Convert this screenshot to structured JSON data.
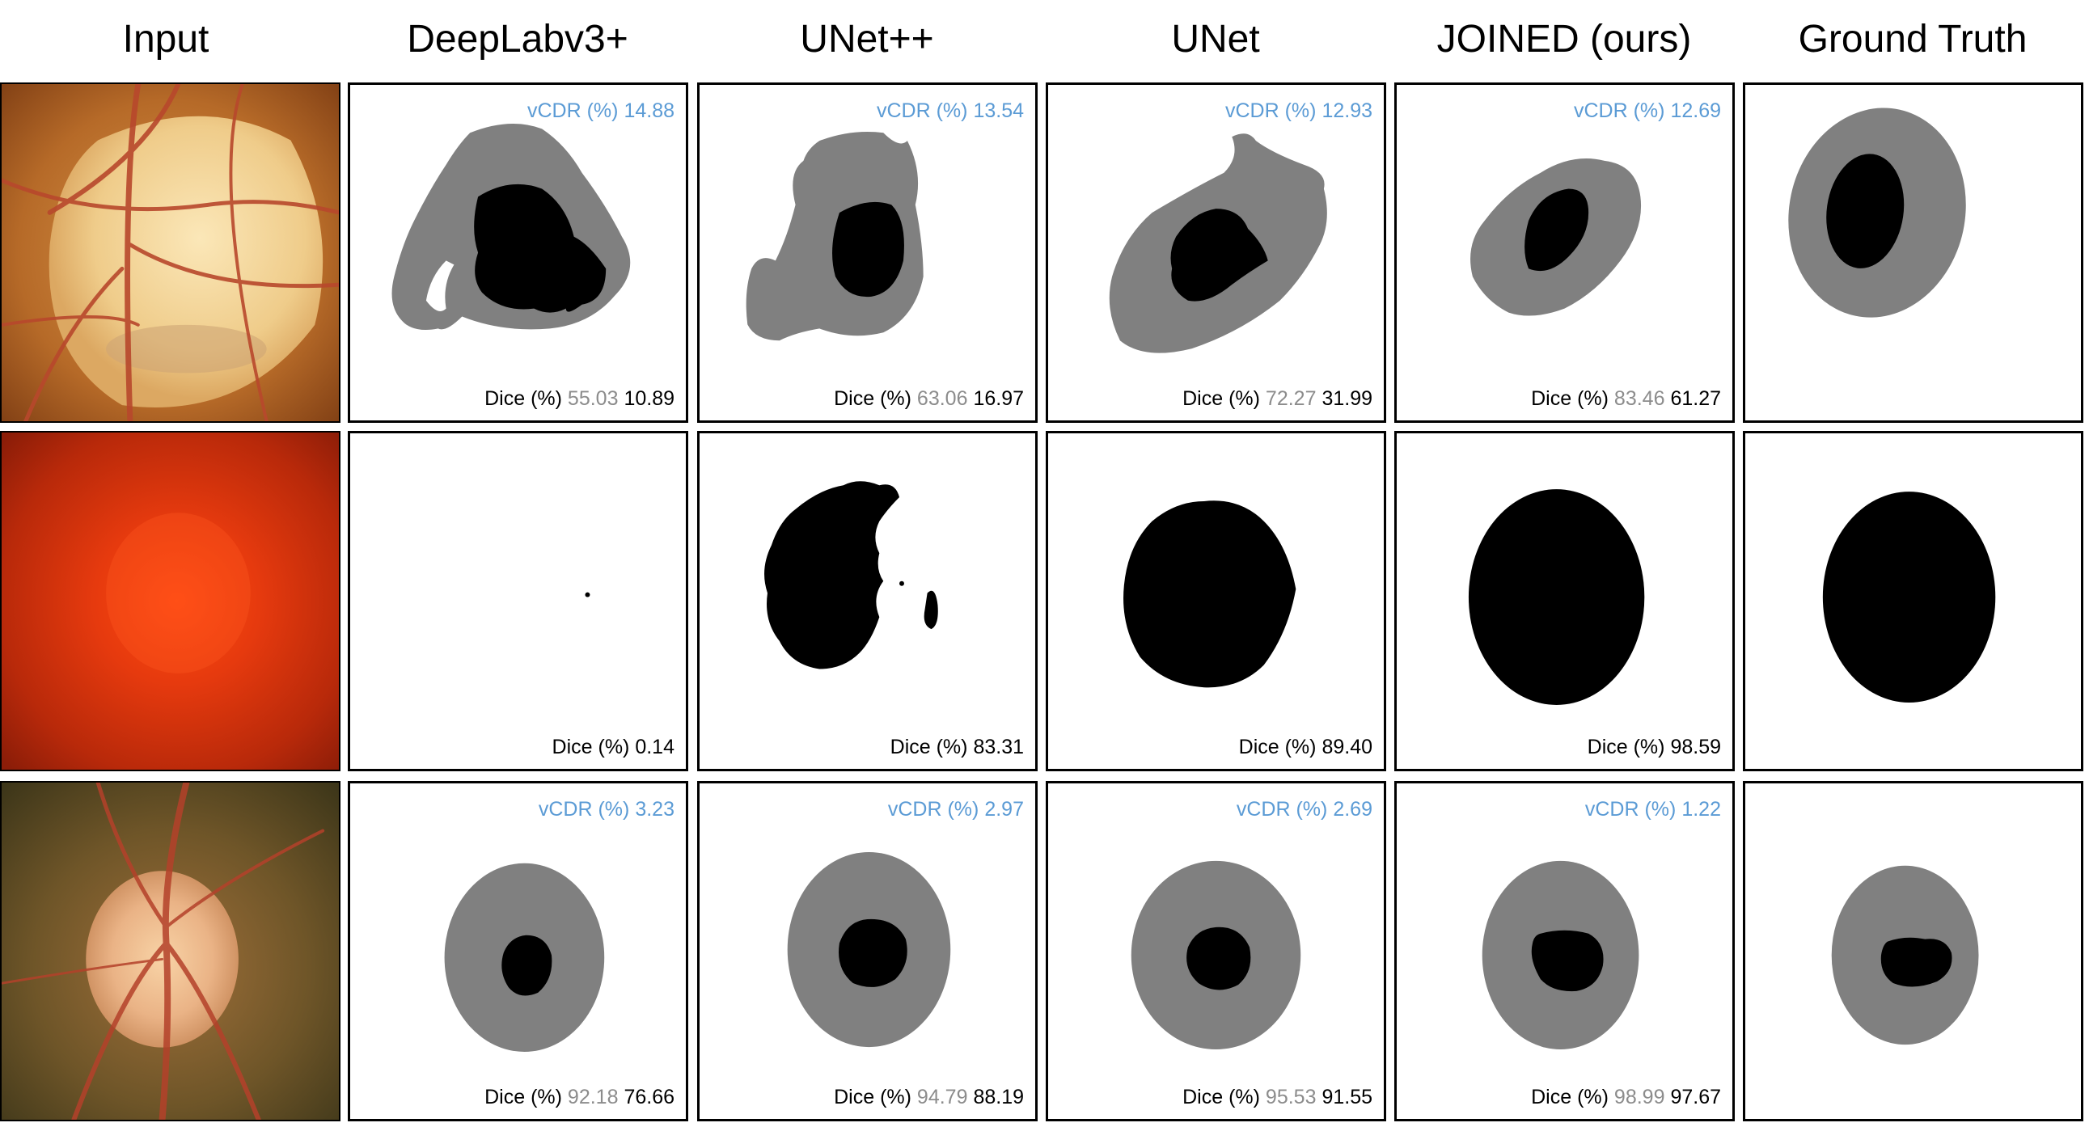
{
  "headers": [
    "Input",
    "DeepLabv3+",
    "UNet++",
    "UNet",
    "JOINED (ours)",
    "Ground Truth"
  ],
  "labels": {
    "vcdr": "vCDR (%)",
    "dice": "Dice (%)"
  },
  "colors": {
    "cup": "#000000",
    "disc": "#808080",
    "vcdr_text": "#5b9bd5",
    "disc_dice_text": "#8c8c8c"
  },
  "rows": [
    {
      "input_image": "fundus-glaucoma-1",
      "cells": [
        {
          "vcdr": "14.88",
          "dice_disc": "55.03",
          "dice_cup": "10.89"
        },
        {
          "vcdr": "13.54",
          "dice_disc": "63.06",
          "dice_cup": "16.97"
        },
        {
          "vcdr": "12.93",
          "dice_disc": "72.27",
          "dice_cup": "31.99"
        },
        {
          "vcdr": "12.69",
          "dice_disc": "83.46",
          "dice_cup": "61.27"
        },
        {}
      ]
    },
    {
      "input_image": "fundus-red-blurred",
      "cells": [
        {
          "dice_cup": "0.14"
        },
        {
          "dice_cup": "83.31"
        },
        {
          "dice_cup": "89.40"
        },
        {
          "dice_cup": "98.59"
        },
        {}
      ]
    },
    {
      "input_image": "fundus-normal-disc",
      "cells": [
        {
          "vcdr": "3.23",
          "dice_disc": "92.18",
          "dice_cup": "76.66"
        },
        {
          "vcdr": "2.97",
          "dice_disc": "94.79",
          "dice_cup": "88.19"
        },
        {
          "vcdr": "2.69",
          "dice_disc": "95.53",
          "dice_cup": "91.55"
        },
        {
          "vcdr": "1.22",
          "dice_disc": "98.99",
          "dice_cup": "97.67"
        },
        {}
      ]
    }
  ]
}
